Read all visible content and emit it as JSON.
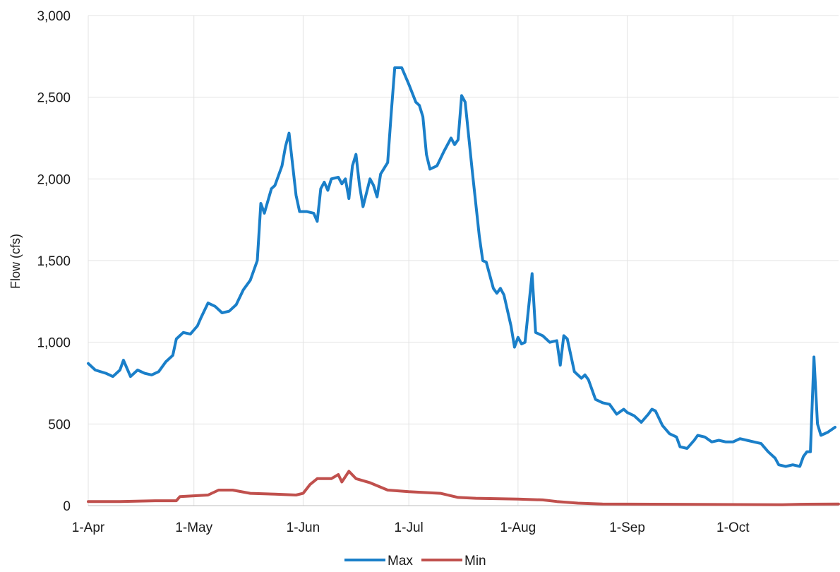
{
  "chart_data": {
    "type": "line",
    "title": "",
    "xlabel": "",
    "ylabel": "Flow (cfs)",
    "x_tick_labels": [
      "1-Apr",
      "1-May",
      "1-Jun",
      "1-Jul",
      "1-Aug",
      "1-Sep",
      "1-Oct"
    ],
    "y_tick_labels": [
      "0",
      "500",
      "1,000",
      "1,500",
      "2,000",
      "2,500",
      "3,000"
    ],
    "ylim": [
      0,
      3000
    ],
    "xlim": [
      "1-Apr",
      "31-Oct"
    ],
    "grid": true,
    "legend_position": "bottom",
    "series": [
      {
        "name": "Max",
        "color": "#1a7fc9",
        "points": [
          [
            "1-Apr",
            870
          ],
          [
            "3-Apr",
            830
          ],
          [
            "6-Apr",
            810
          ],
          [
            "8-Apr",
            790
          ],
          [
            "10-Apr",
            830
          ],
          [
            "11-Apr",
            890
          ],
          [
            "13-Apr",
            790
          ],
          [
            "15-Apr",
            830
          ],
          [
            "17-Apr",
            810
          ],
          [
            "19-Apr",
            800
          ],
          [
            "21-Apr",
            820
          ],
          [
            "23-Apr",
            880
          ],
          [
            "25-Apr",
            920
          ],
          [
            "26-Apr",
            1020
          ],
          [
            "28-Apr",
            1060
          ],
          [
            "30-Apr",
            1050
          ],
          [
            "2-May",
            1100
          ],
          [
            "3-May",
            1150
          ],
          [
            "5-May",
            1240
          ],
          [
            "7-May",
            1220
          ],
          [
            "9-May",
            1180
          ],
          [
            "11-May",
            1190
          ],
          [
            "13-May",
            1230
          ],
          [
            "15-May",
            1320
          ],
          [
            "17-May",
            1380
          ],
          [
            "19-May",
            1500
          ],
          [
            "20-May",
            1850
          ],
          [
            "21-May",
            1790
          ],
          [
            "23-May",
            1940
          ],
          [
            "24-May",
            1960
          ],
          [
            "26-May",
            2080
          ],
          [
            "27-May",
            2200
          ],
          [
            "28-May",
            2280
          ],
          [
            "30-May",
            1900
          ],
          [
            "31-May",
            1800
          ],
          [
            "2-Jun",
            1800
          ],
          [
            "4-Jun",
            1790
          ],
          [
            "5-Jun",
            1740
          ],
          [
            "6-Jun",
            1940
          ],
          [
            "7-Jun",
            1980
          ],
          [
            "8-Jun",
            1930
          ],
          [
            "9-Jun",
            2000
          ],
          [
            "11-Jun",
            2010
          ],
          [
            "12-Jun",
            1970
          ],
          [
            "13-Jun",
            2000
          ],
          [
            "14-Jun",
            1880
          ],
          [
            "15-Jun",
            2080
          ],
          [
            "16-Jun",
            2150
          ],
          [
            "17-Jun",
            1960
          ],
          [
            "18-Jun",
            1830
          ],
          [
            "20-Jun",
            2000
          ],
          [
            "21-Jun",
            1960
          ],
          [
            "22-Jun",
            1890
          ],
          [
            "23-Jun",
            2030
          ],
          [
            "25-Jun",
            2100
          ],
          [
            "26-Jun",
            2400
          ],
          [
            "27-Jun",
            2680
          ],
          [
            "29-Jun",
            2680
          ],
          [
            "1-Jul",
            2580
          ],
          [
            "3-Jul",
            2470
          ],
          [
            "4-Jul",
            2450
          ],
          [
            "5-Jul",
            2380
          ],
          [
            "6-Jul",
            2150
          ],
          [
            "7-Jul",
            2060
          ],
          [
            "9-Jul",
            2080
          ],
          [
            "11-Jul",
            2170
          ],
          [
            "13-Jul",
            2250
          ],
          [
            "14-Jul",
            2210
          ],
          [
            "15-Jul",
            2240
          ],
          [
            "16-Jul",
            2510
          ],
          [
            "17-Jul",
            2470
          ],
          [
            "19-Jul",
            2050
          ],
          [
            "21-Jul",
            1650
          ],
          [
            "22-Jul",
            1500
          ],
          [
            "23-Jul",
            1490
          ],
          [
            "25-Jul",
            1330
          ],
          [
            "26-Jul",
            1300
          ],
          [
            "27-Jul",
            1330
          ],
          [
            "28-Jul",
            1290
          ],
          [
            "30-Jul",
            1100
          ],
          [
            "31-Jul",
            970
          ],
          [
            "1-Aug",
            1030
          ],
          [
            "2-Aug",
            990
          ],
          [
            "3-Aug",
            1000
          ],
          [
            "5-Aug",
            1420
          ],
          [
            "6-Aug",
            1060
          ],
          [
            "8-Aug",
            1040
          ],
          [
            "10-Aug",
            1000
          ],
          [
            "12-Aug",
            1010
          ],
          [
            "13-Aug",
            860
          ],
          [
            "14-Aug",
            1040
          ],
          [
            "15-Aug",
            1020
          ],
          [
            "17-Aug",
            820
          ],
          [
            "19-Aug",
            780
          ],
          [
            "20-Aug",
            800
          ],
          [
            "21-Aug",
            770
          ],
          [
            "23-Aug",
            650
          ],
          [
            "25-Aug",
            630
          ],
          [
            "27-Aug",
            620
          ],
          [
            "29-Aug",
            560
          ],
          [
            "31-Aug",
            590
          ],
          [
            "1-Sep",
            570
          ],
          [
            "3-Sep",
            550
          ],
          [
            "5-Sep",
            510
          ],
          [
            "7-Sep",
            560
          ],
          [
            "8-Sep",
            590
          ],
          [
            "9-Sep",
            580
          ],
          [
            "11-Sep",
            490
          ],
          [
            "13-Sep",
            440
          ],
          [
            "15-Sep",
            420
          ],
          [
            "16-Sep",
            360
          ],
          [
            "18-Sep",
            350
          ],
          [
            "20-Sep",
            400
          ],
          [
            "21-Sep",
            430
          ],
          [
            "23-Sep",
            420
          ],
          [
            "25-Sep",
            390
          ],
          [
            "27-Sep",
            400
          ],
          [
            "29-Sep",
            390
          ],
          [
            "1-Oct",
            390
          ],
          [
            "3-Oct",
            410
          ],
          [
            "5-Oct",
            400
          ],
          [
            "7-Oct",
            390
          ],
          [
            "9-Oct",
            380
          ],
          [
            "11-Oct",
            330
          ],
          [
            "13-Oct",
            290
          ],
          [
            "14-Oct",
            250
          ],
          [
            "16-Oct",
            240
          ],
          [
            "18-Oct",
            250
          ],
          [
            "20-Oct",
            240
          ],
          [
            "21-Oct",
            300
          ],
          [
            "22-Oct",
            330
          ],
          [
            "23-Oct",
            330
          ],
          [
            "24-Oct",
            910
          ],
          [
            "25-Oct",
            500
          ],
          [
            "26-Oct",
            430
          ],
          [
            "28-Oct",
            450
          ],
          [
            "30-Oct",
            480
          ]
        ]
      },
      {
        "name": "Min",
        "color": "#c0504d",
        "points": [
          [
            "1-Apr",
            25
          ],
          [
            "10-Apr",
            25
          ],
          [
            "20-Apr",
            30
          ],
          [
            "26-Apr",
            30
          ],
          [
            "27-Apr",
            55
          ],
          [
            "5-May",
            65
          ],
          [
            "8-May",
            95
          ],
          [
            "12-May",
            95
          ],
          [
            "17-May",
            75
          ],
          [
            "24-May",
            70
          ],
          [
            "30-May",
            65
          ],
          [
            "1-Jun",
            75
          ],
          [
            "3-Jun",
            130
          ],
          [
            "5-Jun",
            165
          ],
          [
            "9-Jun",
            165
          ],
          [
            "11-Jun",
            190
          ],
          [
            "12-Jun",
            145
          ],
          [
            "14-Jun",
            210
          ],
          [
            "16-Jun",
            165
          ],
          [
            "20-Jun",
            140
          ],
          [
            "25-Jun",
            95
          ],
          [
            "1-Jul",
            85
          ],
          [
            "10-Jul",
            75
          ],
          [
            "15-Jul",
            50
          ],
          [
            "20-Jul",
            45
          ],
          [
            "1-Aug",
            40
          ],
          [
            "8-Aug",
            35
          ],
          [
            "12-Aug",
            25
          ],
          [
            "18-Aug",
            15
          ],
          [
            "25-Aug",
            10
          ],
          [
            "15-Sep",
            8
          ],
          [
            "15-Oct",
            5
          ],
          [
            "20-Oct",
            8
          ],
          [
            "31-Oct",
            10
          ]
        ]
      }
    ]
  }
}
